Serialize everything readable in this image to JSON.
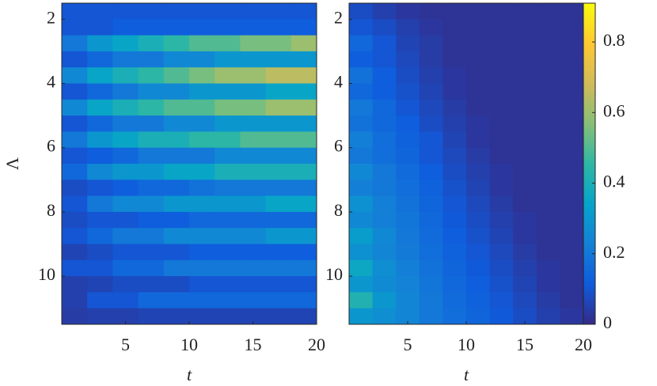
{
  "chart_data": [
    {
      "type": "heatmap",
      "xlabel": "t",
      "ylabel": "Λ",
      "xlim": [
        0,
        20
      ],
      "xticks": [
        5,
        10,
        15,
        20
      ],
      "ylim": [
        1.5,
        11.5
      ],
      "yticks": [
        2,
        4,
        6,
        8,
        10
      ],
      "y_reversed": true,
      "x": [
        1,
        3,
        5,
        7,
        9,
        11,
        13,
        15,
        17,
        19
      ],
      "y": [
        1.75,
        2.25,
        2.75,
        3.25,
        3.75,
        4.25,
        4.75,
        5.25,
        5.75,
        6.25,
        6.75,
        7.25,
        7.75,
        8.25,
        8.75,
        9.25,
        9.75,
        10.25,
        10.75,
        11.25
      ],
      "z": [
        [
          0.1,
          0.1,
          0.1,
          0.1,
          0.1,
          0.1,
          0.1,
          0.1,
          0.1,
          0.1
        ],
        [
          0.1,
          0.1,
          0.12,
          0.12,
          0.12,
          0.12,
          0.12,
          0.12,
          0.12,
          0.12
        ],
        [
          0.2,
          0.3,
          0.35,
          0.4,
          0.45,
          0.5,
          0.5,
          0.55,
          0.55,
          0.6
        ],
        [
          0.1,
          0.15,
          0.2,
          0.2,
          0.25,
          0.25,
          0.3,
          0.3,
          0.3,
          0.3
        ],
        [
          0.25,
          0.35,
          0.4,
          0.45,
          0.5,
          0.55,
          0.6,
          0.6,
          0.65,
          0.65
        ],
        [
          0.1,
          0.15,
          0.2,
          0.25,
          0.25,
          0.3,
          0.3,
          0.3,
          0.35,
          0.35
        ],
        [
          0.25,
          0.35,
          0.4,
          0.45,
          0.5,
          0.5,
          0.55,
          0.55,
          0.6,
          0.6
        ],
        [
          0.1,
          0.15,
          0.2,
          0.2,
          0.25,
          0.25,
          0.3,
          0.3,
          0.3,
          0.3
        ],
        [
          0.2,
          0.3,
          0.35,
          0.4,
          0.4,
          0.45,
          0.45,
          0.5,
          0.5,
          0.5
        ],
        [
          0.1,
          0.12,
          0.15,
          0.2,
          0.2,
          0.2,
          0.25,
          0.25,
          0.25,
          0.25
        ],
        [
          0.15,
          0.25,
          0.3,
          0.3,
          0.35,
          0.35,
          0.4,
          0.4,
          0.4,
          0.4
        ],
        [
          0.08,
          0.1,
          0.12,
          0.15,
          0.15,
          0.18,
          0.2,
          0.2,
          0.2,
          0.2
        ],
        [
          0.1,
          0.2,
          0.25,
          0.25,
          0.3,
          0.3,
          0.3,
          0.3,
          0.35,
          0.35
        ],
        [
          0.08,
          0.1,
          0.1,
          0.12,
          0.12,
          0.15,
          0.15,
          0.15,
          0.15,
          0.15
        ],
        [
          0.1,
          0.15,
          0.2,
          0.2,
          0.25,
          0.25,
          0.25,
          0.25,
          0.3,
          0.3
        ],
        [
          0.06,
          0.08,
          0.1,
          0.1,
          0.1,
          0.12,
          0.12,
          0.12,
          0.12,
          0.12
        ],
        [
          0.1,
          0.1,
          0.15,
          0.15,
          0.2,
          0.2,
          0.2,
          0.2,
          0.2,
          0.2
        ],
        [
          0.05,
          0.06,
          0.08,
          0.08,
          0.08,
          0.1,
          0.1,
          0.1,
          0.1,
          0.1
        ],
        [
          0.05,
          0.1,
          0.1,
          0.15,
          0.15,
          0.15,
          0.15,
          0.15,
          0.15,
          0.15
        ],
        [
          0.04,
          0.05,
          0.05,
          0.06,
          0.06,
          0.06,
          0.06,
          0.06,
          0.06,
          0.06
        ]
      ]
    },
    {
      "type": "heatmap",
      "xlabel": "t",
      "xlim": [
        0,
        20
      ],
      "xticks": [
        5,
        10,
        15,
        20
      ],
      "ylim": [
        1.5,
        11.5
      ],
      "yticks": [
        2,
        4,
        6,
        8,
        10
      ],
      "y_reversed": true,
      "x": [
        1,
        3,
        5,
        7,
        9,
        11,
        13,
        15,
        17,
        19
      ],
      "y": [
        1.75,
        2.25,
        2.75,
        3.25,
        3.75,
        4.25,
        4.75,
        5.25,
        5.75,
        6.25,
        6.75,
        7.25,
        7.75,
        8.25,
        8.75,
        9.25,
        9.75,
        10.25,
        10.75,
        11.25
      ],
      "z": [
        [
          0.08,
          0.05,
          0.03,
          0.02,
          0.02,
          0.02,
          0.02,
          0.02,
          0.02,
          0.02
        ],
        [
          0.1,
          0.08,
          0.05,
          0.03,
          0.02,
          0.02,
          0.02,
          0.02,
          0.02,
          0.02
        ],
        [
          0.15,
          0.1,
          0.06,
          0.04,
          0.02,
          0.02,
          0.02,
          0.02,
          0.02,
          0.02
        ],
        [
          0.12,
          0.1,
          0.07,
          0.04,
          0.02,
          0.02,
          0.02,
          0.02,
          0.02,
          0.02
        ],
        [
          0.18,
          0.12,
          0.08,
          0.05,
          0.03,
          0.02,
          0.02,
          0.02,
          0.02,
          0.02
        ],
        [
          0.15,
          0.12,
          0.09,
          0.06,
          0.03,
          0.02,
          0.02,
          0.02,
          0.02,
          0.02
        ],
        [
          0.2,
          0.15,
          0.1,
          0.07,
          0.04,
          0.02,
          0.02,
          0.02,
          0.02,
          0.02
        ],
        [
          0.18,
          0.15,
          0.12,
          0.08,
          0.05,
          0.03,
          0.02,
          0.02,
          0.02,
          0.02
        ],
        [
          0.22,
          0.17,
          0.13,
          0.1,
          0.06,
          0.03,
          0.02,
          0.02,
          0.02,
          0.02
        ],
        [
          0.2,
          0.17,
          0.14,
          0.1,
          0.07,
          0.04,
          0.02,
          0.02,
          0.02,
          0.02
        ],
        [
          0.25,
          0.2,
          0.16,
          0.12,
          0.08,
          0.05,
          0.03,
          0.02,
          0.02,
          0.02
        ],
        [
          0.22,
          0.2,
          0.17,
          0.13,
          0.09,
          0.06,
          0.03,
          0.02,
          0.02,
          0.02
        ],
        [
          0.28,
          0.22,
          0.18,
          0.14,
          0.1,
          0.07,
          0.04,
          0.02,
          0.02,
          0.02
        ],
        [
          0.25,
          0.22,
          0.19,
          0.15,
          0.11,
          0.08,
          0.05,
          0.03,
          0.02,
          0.02
        ],
        [
          0.32,
          0.25,
          0.2,
          0.16,
          0.12,
          0.09,
          0.06,
          0.03,
          0.02,
          0.02
        ],
        [
          0.28,
          0.24,
          0.21,
          0.17,
          0.13,
          0.1,
          0.07,
          0.04,
          0.02,
          0.02
        ],
        [
          0.36,
          0.27,
          0.22,
          0.18,
          0.14,
          0.11,
          0.08,
          0.05,
          0.03,
          0.02
        ],
        [
          0.3,
          0.26,
          0.23,
          0.19,
          0.15,
          0.12,
          0.09,
          0.06,
          0.03,
          0.02
        ],
        [
          0.42,
          0.3,
          0.24,
          0.2,
          0.16,
          0.13,
          0.1,
          0.07,
          0.04,
          0.02
        ],
        [
          0.3,
          0.27,
          0.24,
          0.2,
          0.17,
          0.14,
          0.11,
          0.08,
          0.05,
          0.03
        ]
      ],
      "colorbar": {
        "lim": [
          0,
          0.91
        ],
        "ticks": [
          0,
          0.2,
          0.4,
          0.6,
          0.8
        ]
      },
      "colormap": [
        "#352a87",
        "#0f5cdd",
        "#1481d6",
        "#06a4ca",
        "#2eb7a4",
        "#87bf77",
        "#d1bb59",
        "#fec832",
        "#f9fb0e"
      ]
    }
  ]
}
